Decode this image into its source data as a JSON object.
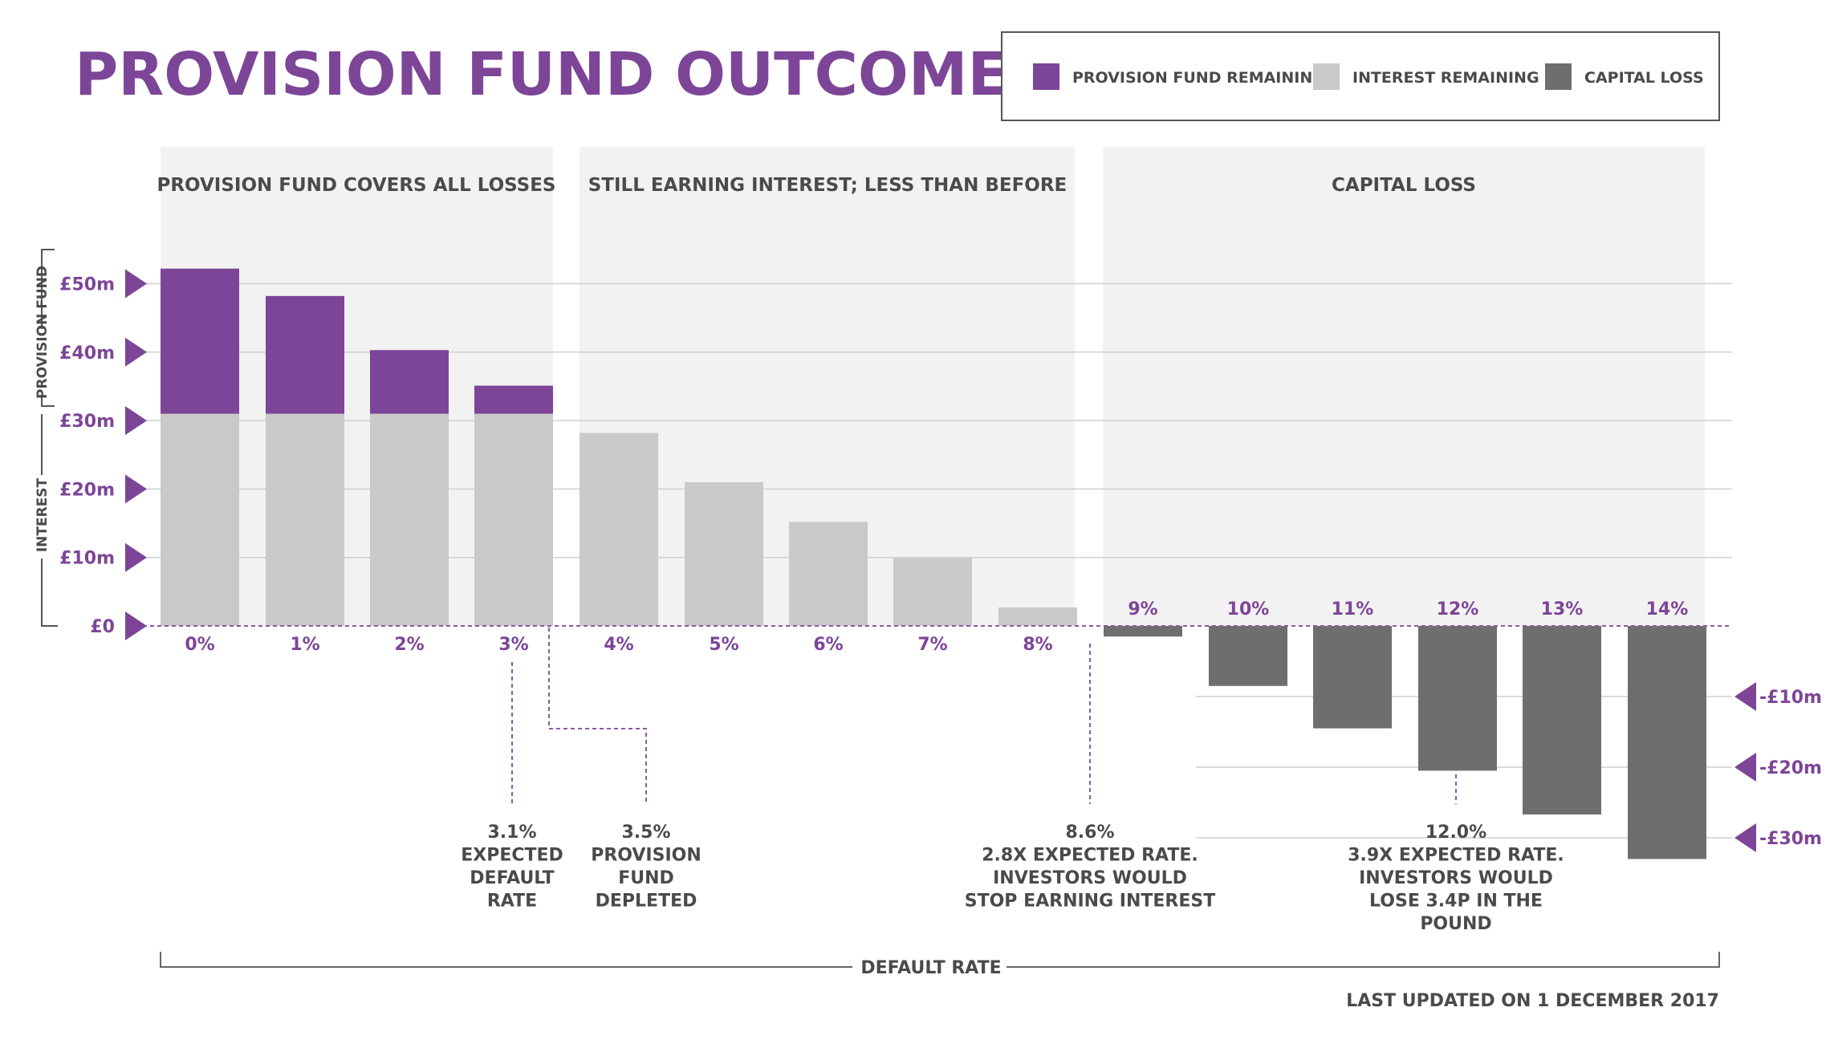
{
  "chart_data": {
    "type": "bar",
    "title": "PROVISION FUND OUTCOMES",
    "xlabel": "DEFAULT  RATE",
    "categories": [
      "0%",
      "1%",
      "2%",
      "3%",
      "4%",
      "5%",
      "6%",
      "7%",
      "8%",
      "9%",
      "10%",
      "11%",
      "12%",
      "13%",
      "14%"
    ],
    "series": [
      {
        "name": "INTEREST REMAINING",
        "color": "#c9c9c9",
        "values": [
          31,
          31,
          31,
          31,
          28.2,
          21,
          15.2,
          9.9,
          2.7,
          0,
          0,
          0,
          0,
          0,
          0
        ]
      },
      {
        "name": "PROVISION FUND REMAINING",
        "color": "#7d4597",
        "values": [
          21.2,
          17.2,
          9.3,
          4.1,
          0,
          0,
          0,
          0,
          0,
          0,
          0,
          0,
          0,
          0,
          0
        ]
      },
      {
        "name": "CAPITAL LOSS",
        "color": "#6e6e6e",
        "values": [
          0,
          0,
          0,
          0,
          0,
          0,
          0,
          0,
          0,
          -1.5,
          -8.5,
          -14.5,
          -20.5,
          -26.7,
          -33.0
        ]
      }
    ],
    "ylim": [
      -33,
      55
    ],
    "y_ticks_positive": [
      "£0",
      "£10m",
      "£20m",
      "£30m",
      "£40m",
      "£50m"
    ],
    "y_ticks_negative": [
      "-£10m",
      "-£20m",
      "-£30m"
    ],
    "axis_groups": [
      "PROVISION FUND",
      "INTEREST"
    ],
    "regions": [
      {
        "label": "PROVISION FUND COVERS ALL LOSSES"
      },
      {
        "label": "STILL EARNING INTEREST; LESS THAN BEFORE"
      },
      {
        "label": "CAPITAL LOSS"
      }
    ],
    "annotations": [
      {
        "lines": [
          "3.1%",
          "EXPECTED",
          "DEFAULT",
          "RATE"
        ]
      },
      {
        "lines": [
          "3.5%",
          "PROVISION",
          "FUND",
          "DEPLETED"
        ]
      },
      {
        "lines": [
          "8.6%",
          "2.8X EXPECTED RATE.",
          "INVESTORS WOULD",
          "STOP EARNING INTEREST"
        ]
      },
      {
        "lines": [
          "12.0%",
          "3.9X EXPECTED RATE.",
          "INVESTORS WOULD",
          "LOSE 3.4P IN THE",
          "POUND"
        ]
      }
    ],
    "footer": "LAST UPDATED ON 1 DECEMBER 2017",
    "grid": true,
    "legend_position": "top-right"
  }
}
